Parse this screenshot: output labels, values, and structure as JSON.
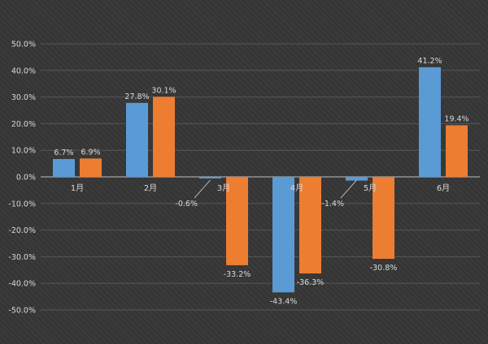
{
  "chart_data": {
    "type": "bar",
    "categories": [
      "1月",
      "2月",
      "3月",
      "4月",
      "5月",
      "6月"
    ],
    "series": [
      {
        "values": [
          6.7,
          27.8,
          -0.6,
          -43.4,
          -1.4,
          41.2
        ],
        "color": "#5b9bd5"
      },
      {
        "values": [
          6.9,
          30.1,
          -33.2,
          -36.3,
          -30.8,
          19.4
        ],
        "color": "#ed7d31"
      }
    ],
    "data_labels": [
      [
        "6.7%",
        "27.8%",
        "-0.6%",
        "-43.4%",
        "-1.4%",
        "41.2%"
      ],
      [
        "6.9%",
        "30.1%",
        "-33.2%",
        "-36.3%",
        "-30.8%",
        "19.4%"
      ]
    ],
    "y_ticks": [
      "-50.0%",
      "-40.0%",
      "-30.0%",
      "-20.0%",
      "-10.0%",
      "0.0%",
      "10.0%",
      "20.0%",
      "30.0%",
      "40.0%",
      "50.0%"
    ],
    "ylim": [
      -50,
      50
    ],
    "grid": true,
    "legend": "none",
    "colors": {
      "background": "#3a3a3a",
      "gridline": "#575757",
      "axis": "#bfbfbf",
      "text": "#d9d9d9"
    }
  }
}
